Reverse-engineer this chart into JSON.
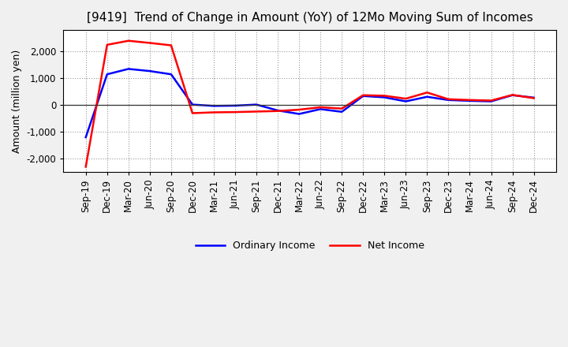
{
  "title": "[9419]  Trend of Change in Amount (YoY) of 12Mo Moving Sum of Incomes",
  "ylabel": "Amount (million yen)",
  "x_labels": [
    "Sep-19",
    "Dec-19",
    "Mar-20",
    "Jun-20",
    "Sep-20",
    "Dec-20",
    "Mar-21",
    "Jun-21",
    "Sep-21",
    "Dec-21",
    "Mar-22",
    "Jun-22",
    "Sep-22",
    "Dec-22",
    "Mar-23",
    "Jun-23",
    "Sep-23",
    "Dec-23",
    "Mar-24",
    "Jun-24",
    "Sep-24",
    "Dec-24"
  ],
  "ordinary_income": [
    -1200,
    1150,
    1350,
    1270,
    1150,
    20,
    -30,
    -20,
    20,
    -200,
    -330,
    -150,
    -250,
    340,
    290,
    140,
    310,
    190,
    160,
    140,
    370,
    280
  ],
  "net_income": [
    -2300,
    2250,
    2400,
    2320,
    2230,
    -300,
    -270,
    -260,
    -240,
    -220,
    -170,
    -80,
    -130,
    370,
    350,
    240,
    470,
    220,
    190,
    170,
    380,
    260
  ],
  "ordinary_color": "#0000ff",
  "net_color": "#ff0000",
  "line_width": 1.8,
  "ylim": [
    -2500,
    2800
  ],
  "yticks": [
    -2000,
    -1000,
    0,
    1000,
    2000
  ],
  "bg_color": "#f0f0f0",
  "plot_bg_color": "#ffffff",
  "grid_color": "#999999",
  "legend_ordinary": "Ordinary Income",
  "legend_net": "Net Income",
  "title_fontsize": 11,
  "label_fontsize": 9,
  "tick_fontsize": 8.5
}
